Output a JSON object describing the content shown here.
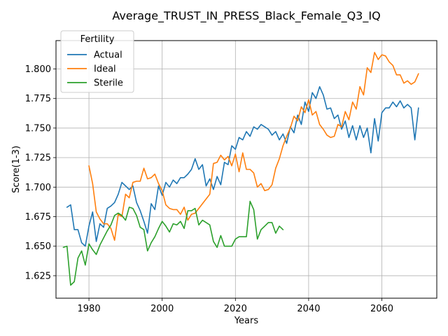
{
  "chart_data": {
    "type": "line",
    "title": "Average_TRUST_IN_PRESS_Black_Female_Q3_IQ",
    "xlabel": "Years",
    "ylabel": "Score(1-3)",
    "xlim": [
      1971,
      2075
    ],
    "ylim": [
      1.606,
      1.824
    ],
    "xticks": [
      1980,
      2000,
      2020,
      2040,
      2060
    ],
    "yticks": [
      1.625,
      1.65,
      1.675,
      1.7,
      1.725,
      1.75,
      1.775,
      1.8
    ],
    "grid": true,
    "legend": {
      "title": "Fertility",
      "position": "top-left",
      "entries": [
        "Actual",
        "Ideal",
        "Sterile"
      ]
    },
    "series": [
      {
        "name": "Actual",
        "color": "#1f77b4",
        "x": [
          1974,
          1975,
          1976,
          1977,
          1978,
          1979,
          1980,
          1981,
          1982,
          1983,
          1984,
          1985,
          1986,
          1987,
          1988,
          1989,
          1990,
          1991,
          1992,
          1993,
          1994,
          1995,
          1996,
          1997,
          1998,
          1999,
          2000,
          2001,
          2002,
          2003,
          2004,
          2005,
          2006,
          2007,
          2008,
          2009,
          2010,
          2011,
          2012,
          2013,
          2014,
          2015,
          2016,
          2017,
          2018,
          2019,
          2020,
          2021,
          2022,
          2023,
          2024,
          2025,
          2026,
          2027,
          2028,
          2029,
          2030,
          2031,
          2032,
          2033,
          2034,
          2035,
          2036,
          2037,
          2038,
          2039,
          2040,
          2041,
          2042,
          2043,
          2044,
          2045,
          2046,
          2047,
          2048,
          2049,
          2050,
          2051,
          2052,
          2053,
          2054,
          2055,
          2056,
          2057,
          2058,
          2059,
          2060,
          2061,
          2062,
          2063,
          2064,
          2065,
          2066,
          2067,
          2068,
          2069,
          2070
        ],
        "values": [
          1.683,
          1.685,
          1.664,
          1.664,
          1.653,
          1.65,
          1.667,
          1.679,
          1.654,
          1.669,
          1.666,
          1.682,
          1.684,
          1.687,
          1.694,
          1.704,
          1.701,
          1.698,
          1.701,
          1.687,
          1.68,
          1.671,
          1.661,
          1.686,
          1.681,
          1.701,
          1.693,
          1.704,
          1.7,
          1.706,
          1.703,
          1.708,
          1.708,
          1.711,
          1.715,
          1.724,
          1.715,
          1.719,
          1.701,
          1.707,
          1.698,
          1.709,
          1.702,
          1.721,
          1.719,
          1.735,
          1.732,
          1.742,
          1.74,
          1.747,
          1.743,
          1.751,
          1.749,
          1.753,
          1.751,
          1.749,
          1.744,
          1.747,
          1.74,
          1.745,
          1.737,
          1.751,
          1.746,
          1.761,
          1.753,
          1.772,
          1.764,
          1.78,
          1.775,
          1.785,
          1.778,
          1.766,
          1.767,
          1.758,
          1.761,
          1.749,
          1.756,
          1.742,
          1.752,
          1.74,
          1.752,
          1.742,
          1.75,
          1.729,
          1.758,
          1.739,
          1.763,
          1.767,
          1.767,
          1.772,
          1.768,
          1.773,
          1.767,
          1.77,
          1.767,
          1.74,
          1.767
        ]
      },
      {
        "name": "Ideal",
        "color": "#ff7f0e",
        "x": [
          1980,
          1981,
          1982,
          1983,
          1984,
          1985,
          1986,
          1987,
          1988,
          1989,
          1990,
          1991,
          1992,
          1993,
          1994,
          1995,
          1996,
          1997,
          1998,
          1999,
          2000,
          2001,
          2002,
          2003,
          2004,
          2005,
          2006,
          2007,
          2008,
          2009,
          2010,
          2011,
          2012,
          2013,
          2014,
          2015,
          2016,
          2017,
          2018,
          2019,
          2020,
          2021,
          2022,
          2023,
          2024,
          2025,
          2026,
          2027,
          2028,
          2029,
          2030,
          2031,
          2032,
          2033,
          2034,
          2035,
          2036,
          2037,
          2038,
          2039,
          2040,
          2041,
          2042,
          2043,
          2044,
          2045,
          2046,
          2047,
          2048,
          2049,
          2050,
          2051,
          2052,
          2053,
          2054,
          2055,
          2056,
          2057,
          2058,
          2059,
          2060,
          2061,
          2062,
          2063,
          2064,
          2065,
          2066,
          2067,
          2068,
          2069,
          2070
        ],
        "values": [
          1.718,
          1.703,
          1.679,
          1.673,
          1.669,
          1.669,
          1.665,
          1.655,
          1.677,
          1.675,
          1.694,
          1.691,
          1.704,
          1.705,
          1.705,
          1.716,
          1.707,
          1.708,
          1.711,
          1.703,
          1.697,
          1.685,
          1.682,
          1.681,
          1.681,
          1.677,
          1.683,
          1.672,
          1.677,
          1.678,
          1.682,
          1.686,
          1.69,
          1.694,
          1.72,
          1.721,
          1.727,
          1.723,
          1.726,
          1.718,
          1.728,
          1.713,
          1.729,
          1.715,
          1.715,
          1.712,
          1.7,
          1.703,
          1.697,
          1.698,
          1.702,
          1.716,
          1.724,
          1.735,
          1.743,
          1.75,
          1.76,
          1.756,
          1.768,
          1.763,
          1.774,
          1.761,
          1.764,
          1.753,
          1.749,
          1.744,
          1.742,
          1.743,
          1.753,
          1.751,
          1.764,
          1.757,
          1.772,
          1.766,
          1.785,
          1.778,
          1.801,
          1.797,
          1.814,
          1.808,
          1.812,
          1.811,
          1.806,
          1.803,
          1.795,
          1.795,
          1.788,
          1.79,
          1.787,
          1.789,
          1.796
        ]
      },
      {
        "name": "Sterile",
        "color": "#2ca02c",
        "x": [
          1973,
          1974,
          1975,
          1976,
          1977,
          1978,
          1979,
          1980,
          1981,
          1982,
          1983,
          1984,
          1985,
          1986,
          1987,
          1988,
          1989,
          1990,
          1991,
          1992,
          1993,
          1994,
          1995,
          1996,
          1997,
          1998,
          1999,
          2000,
          2001,
          2002,
          2003,
          2004,
          2005,
          2006,
          2007,
          2008,
          2009,
          2010,
          2011,
          2012,
          2013,
          2014,
          2015,
          2016,
          2017,
          2018,
          2019,
          2020,
          2021,
          2022,
          2023,
          2024,
          2025,
          2026,
          2027,
          2028,
          2029,
          2030,
          2031,
          2032,
          2033
        ],
        "values": [
          1.649,
          1.65,
          1.617,
          1.62,
          1.64,
          1.646,
          1.634,
          1.652,
          1.647,
          1.643,
          1.651,
          1.657,
          1.663,
          1.668,
          1.676,
          1.678,
          1.676,
          1.672,
          1.683,
          1.682,
          1.676,
          1.666,
          1.664,
          1.646,
          1.653,
          1.658,
          1.665,
          1.671,
          1.667,
          1.662,
          1.669,
          1.668,
          1.671,
          1.665,
          1.68,
          1.68,
          1.682,
          1.668,
          1.672,
          1.67,
          1.668,
          1.654,
          1.649,
          1.659,
          1.65,
          1.65,
          1.65,
          1.656,
          1.658,
          1.658,
          1.658,
          1.688,
          1.681,
          1.656,
          1.664,
          1.667,
          1.67,
          1.67,
          1.661,
          1.667,
          1.664
        ]
      }
    ]
  }
}
